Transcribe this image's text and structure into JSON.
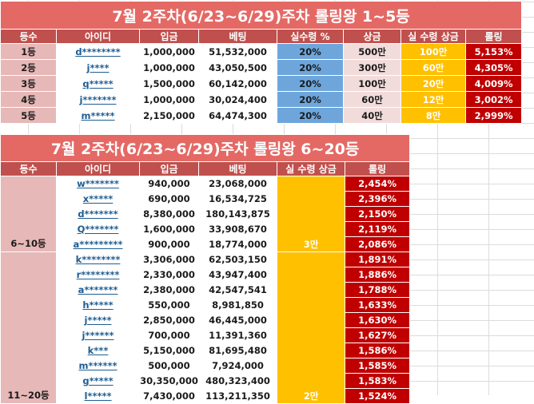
{
  "table1": {
    "title": "7월 2주차(6/23~6/29)주차 롤링왕 1~5등",
    "headers": [
      "등수",
      "아이디",
      "입금",
      "베팅",
      "실수령 %",
      "상금",
      "실 수령 상금",
      "롤링"
    ],
    "rows": [
      {
        "rank": "1등",
        "id": "d********",
        "deposit": "1,000,000",
        "bet": "51,532,000",
        "pct": "20%",
        "prize": "500만",
        "real": "100만",
        "rolling": "5,153%"
      },
      {
        "rank": "2등",
        "id": "j****",
        "deposit": "1,000,000",
        "bet": "43,050,500",
        "pct": "20%",
        "prize": "300만",
        "real": "60만",
        "rolling": "4,305%"
      },
      {
        "rank": "3등",
        "id": "q*****",
        "deposit": "1,500,000",
        "bet": "60,142,000",
        "pct": "20%",
        "prize": "100만",
        "real": "20만",
        "rolling": "4,009%"
      },
      {
        "rank": "4등",
        "id": "j*******",
        "deposit": "1,000,000",
        "bet": "30,024,400",
        "pct": "20%",
        "prize": "60만",
        "real": "12만",
        "rolling": "3,002%"
      },
      {
        "rank": "5등",
        "id": "m*****",
        "deposit": "2,150,000",
        "bet": "64,474,300",
        "pct": "20%",
        "prize": "40만",
        "real": "8만",
        "rolling": "2,999%"
      }
    ]
  },
  "table2": {
    "title": "7월 2주차(6/23~6/29)주차 롤링왕 6~20등",
    "headers": [
      "등수",
      "아이디",
      "입금",
      "베팅",
      "실 수령 상금",
      "롤링"
    ],
    "group1": {
      "rank": "6~10등",
      "bonus": "3만"
    },
    "group2": {
      "rank": "11~20등",
      "bonus": "2만"
    },
    "rows": [
      {
        "id": "w*******",
        "deposit": "940,000",
        "bet": "23,068,000",
        "rolling": "2,454%"
      },
      {
        "id": "x*****",
        "deposit": "690,000",
        "bet": "16,534,725",
        "rolling": "2,396%"
      },
      {
        "id": "d*******",
        "deposit": "8,380,000",
        "bet": "180,143,875",
        "rolling": "2,150%"
      },
      {
        "id": "Q*******",
        "deposit": "1,600,000",
        "bet": "33,908,670",
        "rolling": "2,119%"
      },
      {
        "id": "a*********",
        "deposit": "900,000",
        "bet": "18,774,000",
        "rolling": "2,086%"
      },
      {
        "id": "k********",
        "deposit": "3,306,000",
        "bet": "62,503,150",
        "rolling": "1,891%"
      },
      {
        "id": "r********",
        "deposit": "2,330,000",
        "bet": "43,947,400",
        "rolling": "1,886%"
      },
      {
        "id": "a*******",
        "deposit": "2,380,000",
        "bet": "42,547,541",
        "rolling": "1,788%"
      },
      {
        "id": "h*****",
        "deposit": "550,000",
        "bet": "8,981,850",
        "rolling": "1,633%"
      },
      {
        "id": "j*****",
        "deposit": "2,850,000",
        "bet": "46,445,000",
        "rolling": "1,630%"
      },
      {
        "id": "j******",
        "deposit": "700,000",
        "bet": "11,391,360",
        "rolling": "1,627%"
      },
      {
        "id": "k***",
        "deposit": "5,150,000",
        "bet": "81,695,480",
        "rolling": "1,586%"
      },
      {
        "id": "m******",
        "deposit": "500,000",
        "bet": "7,924,000",
        "rolling": "1,585%"
      },
      {
        "id": "g*****",
        "deposit": "30,350,000",
        "bet": "480,323,400",
        "rolling": "1,583%"
      },
      {
        "id": "l*****",
        "deposit": "7,430,000",
        "bet": "113,211,350",
        "rolling": "1,524%"
      }
    ]
  },
  "colors": {
    "title_bg": "#e46965",
    "header_bg": "#c0504d",
    "rank_bg": "#e6b8b7",
    "pct_bg": "#6ea6dc",
    "prize_bg": "#f2dcdb",
    "bonus_bg": "#ffc000",
    "rolling_bg": "#c00000"
  }
}
